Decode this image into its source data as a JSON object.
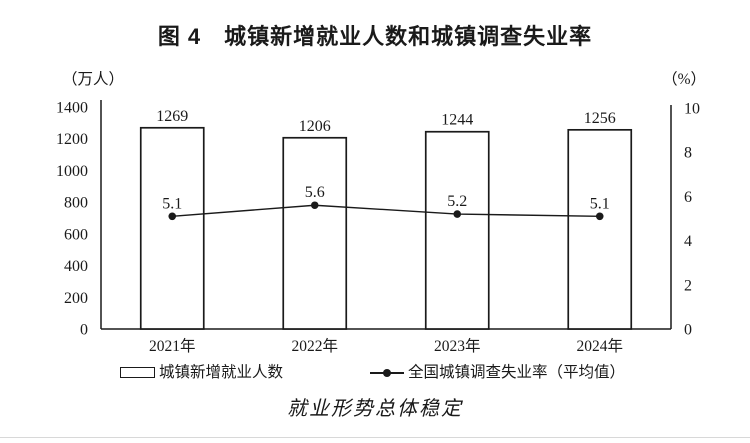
{
  "figure": {
    "title": "图 4　城镇新增就业人数和城镇调查失业率",
    "caption": "就业形势总体稳定"
  },
  "chart_data": {
    "type": "bar",
    "subtype": "bar+line combo, dual axis",
    "title": "图 4　城镇新增就业人数和城镇调查失业率",
    "categories": [
      "2021年",
      "2022年",
      "2023年",
      "2024年"
    ],
    "series": [
      {
        "name": "城镇新增就业人数",
        "type": "bar",
        "axis": "left",
        "values": [
          1269,
          1206,
          1244,
          1256
        ]
      },
      {
        "name": "全国城镇调查失业率（平均值）",
        "type": "line",
        "axis": "right",
        "values": [
          5.1,
          5.6,
          5.2,
          5.1
        ]
      }
    ],
    "left_axis": {
      "unit": "（万人）",
      "min": 0,
      "max": 1400,
      "step": 200,
      "ticks": [
        0,
        200,
        400,
        600,
        800,
        1000,
        1200,
        1400
      ]
    },
    "right_axis": {
      "unit": "（%）",
      "min": 0,
      "max": 10,
      "step": 2,
      "ticks": [
        0,
        2,
        4,
        6,
        8,
        10
      ]
    },
    "legend": {
      "position": "bottom",
      "items": [
        "城镇新增就业人数",
        "全国城镇调查失业率（平均值）"
      ]
    },
    "grid": false,
    "annotation": "就业形势总体稳定",
    "colors": {
      "ink": "#1a1a1a",
      "bar_fill": "#ffffff",
      "background": "#ffffff"
    }
  }
}
